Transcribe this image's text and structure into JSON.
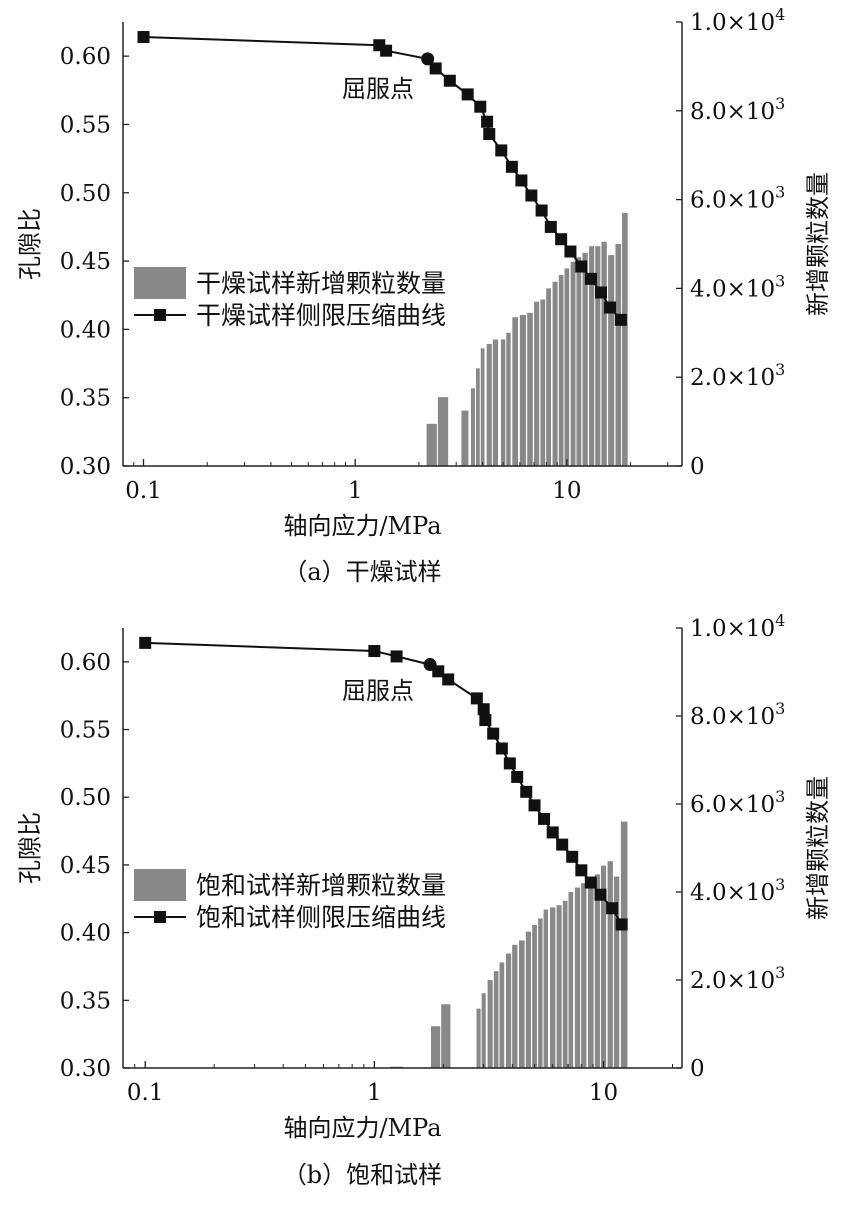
{
  "chart_data": [
    {
      "type": "bar+line",
      "caption": "（a）干燥试样",
      "xlabel": "轴向应力/MPa",
      "ylabel_left": "孔隙比",
      "ylabel_right": "新增颗粒数量",
      "x_scale": "log",
      "xlim": [
        0.08,
        35
      ],
      "x_ticks": [
        "0.1",
        "1",
        "10"
      ],
      "ylim_left": [
        0.3,
        0.625
      ],
      "y_ticks_left": [
        "0.30",
        "0.35",
        "0.40",
        "0.45",
        "0.50",
        "0.55",
        "0.60"
      ],
      "ylim_right": [
        0,
        10000
      ],
      "y_ticks_right": [
        "0",
        "2.0×10³",
        "4.0×10³",
        "6.0×10³",
        "8.0×10³",
        "1.0×10⁴"
      ],
      "annotation": "屈服点",
      "yield_point": {
        "x": 2.2,
        "y": 0.598
      },
      "legend": [
        "干燥试样新增颗粒数量",
        "干燥试样侧限压缩曲线"
      ],
      "bars": {
        "x": [
          2.3,
          2.6,
          3.3,
          3.6,
          3.8,
          4.0,
          4.3,
          4.6,
          5.0,
          5.3,
          5.7,
          6.2,
          6.7,
          7.2,
          7.7,
          8.2,
          8.8,
          9.4,
          10.0,
          10.7,
          11.4,
          12.2,
          13.1,
          14.0,
          15.0,
          16.2,
          17.5,
          18.8
        ],
        "values": [
          950,
          1550,
          1250,
          1750,
          2200,
          2650,
          2750,
          2850,
          2850,
          3000,
          3350,
          3400,
          3450,
          3700,
          3750,
          4000,
          4150,
          4300,
          4450,
          4600,
          4700,
          4800,
          4950,
          4950,
          5050,
          4750,
          5000,
          5700
        ]
      },
      "line": {
        "x": [
          0.1,
          1.3,
          1.4,
          2.2,
          2.4,
          2.8,
          3.4,
          3.9,
          4.2,
          4.3,
          4.9,
          5.5,
          6.1,
          6.8,
          7.6,
          8.4,
          9.4,
          10.4,
          11.7,
          13.0,
          14.5,
          16.0,
          18.0
        ],
        "y": [
          0.614,
          0.608,
          0.604,
          0.598,
          0.591,
          0.582,
          0.572,
          0.563,
          0.552,
          0.543,
          0.531,
          0.519,
          0.509,
          0.498,
          0.487,
          0.475,
          0.466,
          0.457,
          0.446,
          0.437,
          0.427,
          0.416,
          0.407
        ]
      }
    },
    {
      "type": "bar+line",
      "caption": "（b）饱和试样",
      "xlabel": "轴向应力/MPa",
      "ylabel_left": "孔隙比",
      "ylabel_right": "新增颗粒数量",
      "x_scale": "log",
      "xlim": [
        0.08,
        22
      ],
      "x_ticks": [
        "0.1",
        "1",
        "10"
      ],
      "ylim_left": [
        0.3,
        0.625
      ],
      "y_ticks_left": [
        "0.30",
        "0.35",
        "0.40",
        "0.45",
        "0.50",
        "0.55",
        "0.60"
      ],
      "ylim_right": [
        0,
        10000
      ],
      "y_ticks_right": [
        "0",
        "2.0×10³",
        "4.0×10³",
        "6.0×10³",
        "8.0×10³",
        "1.0×10⁴"
      ],
      "annotation": "屈服点",
      "yield_point": {
        "x": 1.75,
        "y": 0.598
      },
      "legend": [
        "饱和试样新增颗粒数量",
        "饱和试样侧限压缩曲线"
      ],
      "bars": {
        "x": [
          1.25,
          1.85,
          2.05,
          2.85,
          3.0,
          3.2,
          3.4,
          3.6,
          3.85,
          4.1,
          4.4,
          4.7,
          5.0,
          5.3,
          5.6,
          6.0,
          6.4,
          6.8,
          7.2,
          7.7,
          8.2,
          8.8,
          9.4,
          10.0,
          10.7,
          11.4,
          12.3
        ],
        "values": [
          30,
          950,
          1450,
          1350,
          1700,
          2000,
          2200,
          2400,
          2600,
          2800,
          2900,
          3100,
          3250,
          3400,
          3600,
          3650,
          3700,
          3800,
          4000,
          4100,
          4200,
          4350,
          4400,
          4600,
          4700,
          4350,
          5600
        ]
      },
      "line": {
        "x": [
          0.1,
          1.0,
          1.25,
          1.75,
          1.9,
          2.1,
          2.8,
          3.0,
          3.05,
          3.3,
          3.6,
          3.9,
          4.2,
          4.6,
          5.0,
          5.5,
          6.0,
          6.6,
          7.3,
          8.0,
          8.8,
          9.7,
          10.9,
          12.0
        ],
        "y": [
          0.614,
          0.608,
          0.604,
          0.598,
          0.593,
          0.587,
          0.573,
          0.565,
          0.557,
          0.547,
          0.536,
          0.525,
          0.515,
          0.504,
          0.494,
          0.484,
          0.474,
          0.465,
          0.456,
          0.446,
          0.437,
          0.428,
          0.418,
          0.406
        ]
      }
    }
  ]
}
